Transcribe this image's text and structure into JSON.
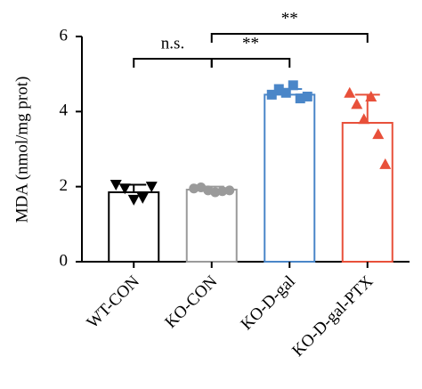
{
  "chart_data": {
    "type": "bar",
    "y_label": "MDA (nmol/mg prot)",
    "categories": [
      "WT-CON",
      "KO-CON",
      "KO-D-gal",
      "KO-D-gal-PTX"
    ],
    "values": [
      1.85,
      1.92,
      4.45,
      3.7
    ],
    "errors": [
      0.2,
      0.08,
      0.15,
      0.75
    ],
    "points": [
      [
        2.05,
        1.95,
        1.65,
        1.7,
        2.0
      ],
      [
        1.95,
        1.98,
        1.9,
        1.85,
        1.88,
        1.9
      ],
      [
        4.45,
        4.6,
        4.5,
        4.7,
        4.35,
        4.4
      ],
      [
        4.5,
        4.2,
        3.8,
        4.4,
        3.4,
        2.6
      ]
    ],
    "colors": [
      "#000000",
      "#9a9a9a",
      "#4a86c8",
      "#e8503a"
    ],
    "markers": [
      "triangle-down",
      "circle",
      "square",
      "triangle-up"
    ],
    "ylim": [
      0,
      6
    ],
    "yticks": [
      0,
      2,
      4,
      6
    ],
    "annotations": [
      {
        "text": "n.s.",
        "from": 0,
        "to": 1
      },
      {
        "text": "**",
        "from": 1,
        "to": 2
      },
      {
        "text": "**",
        "from": 1,
        "to": 3
      }
    ]
  }
}
